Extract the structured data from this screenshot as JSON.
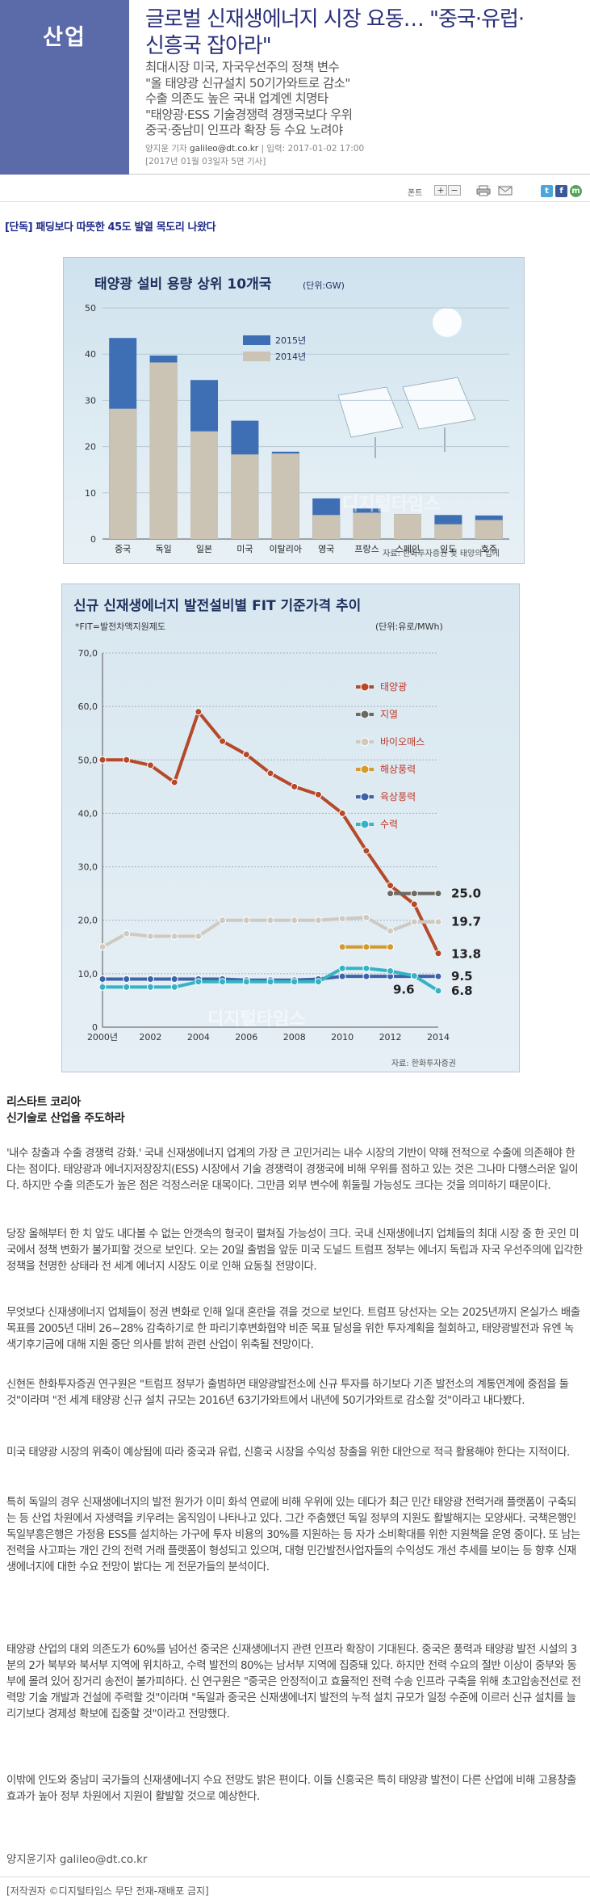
{
  "header": {
    "section": "산업",
    "headline_line1": "글로벌 신재생에너지 시장 요동… \"중국·유럽·",
    "headline_line2": "신흥국 잡아라\"",
    "subtitles": [
      "최대시장 미국, 자국우선주의 정책 변수",
      "\"올 태양광 신규설치 50기가와트로 감소\"",
      "수출 의존도 높은 국내 업계엔 치명타",
      "\"태양광·ESS 기술경쟁력 경쟁국보다 우위",
      "중국·중남미 인프라 확장 등 수요 노려야"
    ],
    "byline_name": "양지윤 기자",
    "byline_email": "galileo@dt.co.kr",
    "byline_input": "| 입력: 2017-01-02 17:00",
    "byline_print": "[2017년 01월 03일자 5면 기사]"
  },
  "toolbar": {
    "font_label": "폰트",
    "plus": "+",
    "minus": "−",
    "print_icon": "printer-icon",
    "mail_icon": "mail-icon",
    "twitter": "t",
    "facebook": "f",
    "me2day": "m"
  },
  "related_link": "[단독] 패딩보다 따뜻한 45도 발열 목도리 나왔다",
  "figure1": {
    "watermark": "디지털타임스",
    "chart_data": {
      "type": "bar",
      "title": "태양광 설비 용량 상위 10개국",
      "unit": "(단위:GW)",
      "categories": [
        "중국",
        "독일",
        "일본",
        "미국",
        "이탈리아",
        "영국",
        "프랑스",
        "스페인",
        "인도",
        "호주"
      ],
      "series": [
        {
          "name": "2014년",
          "values": [
            28.2,
            38.2,
            23.3,
            18.3,
            18.5,
            5.2,
            5.7,
            5.4,
            3.2,
            4.1
          ],
          "color": "#cbc3b3"
        },
        {
          "name": "2015년",
          "values": [
            43.5,
            39.7,
            34.4,
            25.6,
            18.9,
            8.8,
            6.6,
            5.4,
            5.2,
            5.1
          ],
          "color": "#3e6fb4"
        }
      ],
      "ylim": [
        0,
        50
      ],
      "yticks": [
        0,
        10,
        20,
        30,
        40,
        50
      ],
      "source": "자료: 한화투자증권 및 태양의 입게"
    }
  },
  "figure2": {
    "watermark": "디지털타임스",
    "chart_data": {
      "type": "line",
      "title": "신규 신재생에너지 발전설비별 FIT 기준가격 추이",
      "note": "*FIT=발전차액지원제도",
      "unit": "(단위:유로/MWh)",
      "x": [
        2000,
        2001,
        2002,
        2003,
        2004,
        2005,
        2006,
        2007,
        2008,
        2009,
        2010,
        2011,
        2012,
        2013,
        2014
      ],
      "xticks": [
        "2000년",
        "2002",
        "2004",
        "2006",
        "2008",
        "2010",
        "2012",
        "2014"
      ],
      "ylim": [
        0,
        70
      ],
      "yticks": [
        "0",
        "10,0",
        "20,0",
        "30,0",
        "40,0",
        "50,0",
        "60,0",
        "70,0"
      ],
      "series": [
        {
          "name": "태양광",
          "color": "#b5492a",
          "x": [
            2000,
            2001,
            2002,
            2003,
            2004,
            2005,
            2006,
            2007,
            2008,
            2009,
            2010,
            2011,
            2012,
            2013,
            2014
          ],
          "values": [
            50.0,
            50.0,
            49.0,
            45.8,
            59.0,
            53.5,
            51.0,
            47.5,
            45.0,
            43.5,
            40.0,
            33.0,
            26.5,
            23.0,
            13.8
          ]
        },
        {
          "name": "지열",
          "color": "#6b6b64",
          "x": [
            2012,
            2013,
            2014
          ],
          "values": [
            25.0,
            25.0,
            25.0
          ]
        },
        {
          "name": "바이오매스",
          "color": "#cfcac1",
          "x": [
            2000,
            2001,
            2002,
            2003,
            2004,
            2005,
            2006,
            2007,
            2008,
            2009,
            2010,
            2011,
            2012,
            2013,
            2014
          ],
          "values": [
            15.0,
            17.5,
            17.0,
            17.0,
            17.0,
            20.0,
            20.0,
            20.0,
            20.0,
            20.0,
            20.3,
            20.5,
            18.0,
            19.7,
            19.7
          ]
        },
        {
          "name": "해상풍력",
          "color": "#d39a2e",
          "x": [
            2010,
            2011,
            2012
          ],
          "values": [
            15.0,
            15.0,
            15.0
          ]
        },
        {
          "name": "육상풍력",
          "color": "#3f63a8",
          "x": [
            2000,
            2001,
            2002,
            2003,
            2004,
            2005,
            2006,
            2007,
            2008,
            2009,
            2010,
            2011,
            2012,
            2013,
            2014
          ],
          "values": [
            9.0,
            9.0,
            9.0,
            9.0,
            9.0,
            9.0,
            8.8,
            8.8,
            8.8,
            9.0,
            9.5,
            9.5,
            9.5,
            9.5,
            9.5
          ]
        },
        {
          "name": "수력",
          "color": "#35b3c4",
          "x": [
            2000,
            2001,
            2002,
            2003,
            2004,
            2005,
            2006,
            2007,
            2008,
            2009,
            2010,
            2011,
            2012,
            2013,
            2014
          ],
          "values": [
            7.5,
            7.5,
            7.5,
            7.5,
            8.5,
            8.5,
            8.5,
            8.5,
            8.5,
            8.5,
            11.0,
            11.0,
            10.5,
            9.6,
            6.8
          ]
        }
      ],
      "end_labels": [
        "25.0",
        "19.7",
        "13.8",
        "9.5",
        "6.8",
        "9.6"
      ],
      "source": "자료: 한화투자증권"
    }
  },
  "article": {
    "sub_heading_1": "리스타트 코리아",
    "sub_heading_2": "신기술로 산업을 주도하라",
    "paragraphs": [
      "'내수 창출과 수출 경쟁력 강화.' 국내 신재생에너지 업계의 가장 큰 고민거리는 내수 시장의 기반이 약해 전적으로 수출에 의존해야 한다는 점이다. 태양광과 에너지저장장치(ESS) 시장에서 기술 경쟁력이 경쟁국에 비해 우위를 점하고 있는 것은 그나마 다행스러운 일이다. 하지만 수출 의존도가 높은 점은 걱정스러운 대목이다. 그만큼 외부 변수에 휘둘릴 가능성도 크다는 것을 의미하기 때문이다.",
      "당장 올해부터 한 치 앞도 내다볼 수 없는 안갯속의 형국이 펼쳐질 가능성이 크다. 국내 신재생에너지 업체들의 최대 시장 중 한 곳인 미국에서 정책 변화가 불가피할 것으로 보인다. 오는 20일 출범을 앞둔 미국 도널드 트럼프 정부는 에너지 독립과 자국 우선주의에 입각한 정책을 천명한 상태라 전 세계 에너지 시장도 이로 인해 요동칠 전망이다.",
      "무엇보다 신재생에너지 업체들이 정권 변화로 인해 일대 혼란을 겪을 것으로 보인다. 트럼프 당선자는 오는 2025년까지 온실가스 배출 목표를 2005년 대비 26~28% 감축하기로 한 파리기후변화협약 비준 목표 달성을 위한 투자계획을 철회하고, 태양광발전과 유엔 녹색기후기금에 대해 지원 중단 의사를 밝혀 관련 산업이 위축될 전망이다.",
      "신현돈 한화투자증권 연구원은 \"트럼프 정부가 출범하면 태양광발전소에 신규 투자를 하기보다 기존 발전소의 계통연계에 중점을 둘 것\"이라며 \"전 세계 태양광 신규 설치 규모는 2016년 63기가와트에서 내년에 50기가와트로 감소할 것\"이라고 내다봤다.",
      "미국 태양광 시장의 위축이 예상됨에 따라 중국과 유럽, 신흥국 시장을 수익성 창출을 위한 대안으로 적극 활용해야 한다는 지적이다.",
      "특히 독일의 경우 신재생에너지의 발전 원가가 이미 화석 연료에 비해 우위에 있는 데다가 최근 민간 태양광 전력거래 플랫폼이 구축되는 등 산업 차원에서 자생력을 키우려는 움직임이 나타나고 있다. 그간 주춤했던 독일 정부의 지원도 활발해지는 모양새다. 국책은행인 독일부흥은행은 가정용 ESS를 설치하는 가구에 투자 비용의 30%를 지원하는 등 자가 소비확대를 위한 지원책을 운영 중이다. 또 남는 전력을 사고파는 개인 간의 전력 거래 플랫폼이 형성되고 있으며, 대형 민간발전사업자들의 수익성도 개선 추세를 보이는 등 향후 신재생에너지에 대한 수요 전망이 밝다는 게 전문가들의 분석이다.",
      "태양광 산업의 대외 의존도가 60%를 넘어선 중국은 신재생에너지 관련 인프라 확장이 기대된다. 중국은 풍력과 태양광 발전 시설의 3분의 2가 북부와 북서부 지역에 위치하고, 수력 발전의 80%는 남서부 지역에 집중돼 있다. 하지만 전력 수요의 절반 이상이 중부와 동부에 몰려 있어 장거리 송전이 불가피하다. 신 연구원은 \"중국은 안정적이고 효율적인 전력 수송 인프라 구축을 위해 초고압송전선로 전력망 기술 개발과 건설에 주력할 것\"이라며 \"독일과 중국은 신재생에너지 발전의 누적 설치 규모가 일정 수준에 이르러 신규 설치를 늘리기보다 경제성 확보에 집중할 것\"이라고 전망했다.",
      "이밖에 인도와 중남미 국가들의 신재생에너지 수요 전망도 밝은 편이다. 이들 신흥국은 특히 태양광 발전이 다른 산업에 비해 고용창출 효과가 높아 정부 차원에서 지원이 활발할 것으로 예상한다."
    ],
    "reporter": "양지윤기자 galileo@dt.co.kr",
    "copyright": "[저작권자 ©디지털타임스 무단 전재-재배포 금지]"
  }
}
